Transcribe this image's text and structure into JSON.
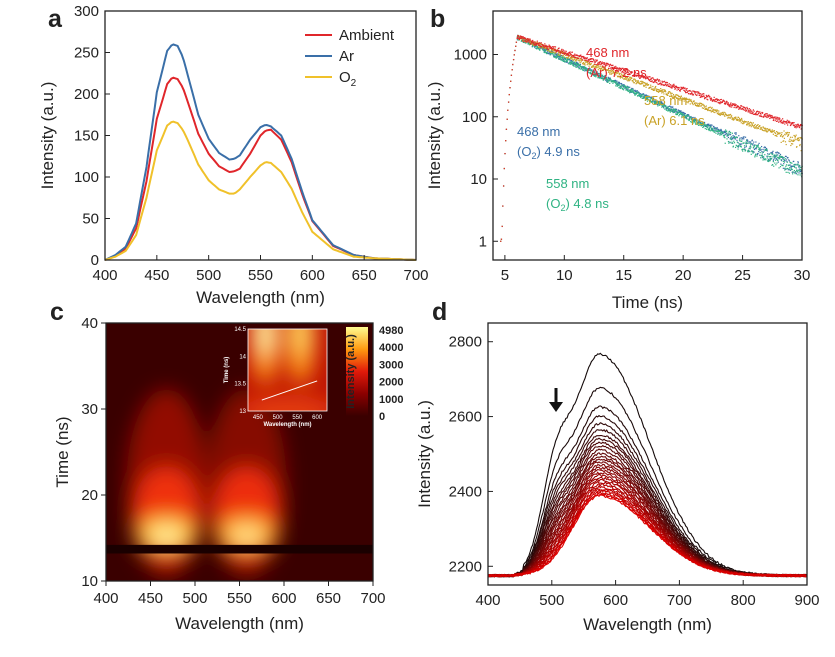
{
  "chart_data": [
    {
      "panel": "a",
      "type": "line",
      "xlabel": "Wavelength (nm)",
      "ylabel": "Intensity (a.u.)",
      "xlim": [
        400,
        700
      ],
      "ylim": [
        0,
        300
      ],
      "xticks": [
        400,
        450,
        500,
        550,
        600,
        650,
        700
      ],
      "yticks": [
        0,
        50,
        100,
        150,
        200,
        250,
        300
      ],
      "legend_position": "top-right",
      "series": [
        {
          "name": "Ambient",
          "color": "#e0262b",
          "x": [
            400,
            410,
            420,
            430,
            440,
            450,
            460,
            465,
            470,
            475,
            480,
            490,
            500,
            510,
            520,
            525,
            530,
            540,
            550,
            555,
            560,
            570,
            580,
            590,
            600,
            620,
            640,
            660,
            680,
            700
          ],
          "y": [
            0,
            5,
            14,
            38,
            95,
            170,
            212,
            220,
            218,
            208,
            190,
            152,
            128,
            113,
            106,
            107,
            110,
            128,
            150,
            156,
            157,
            145,
            118,
            80,
            47,
            17,
            6,
            2,
            1,
            0
          ]
        },
        {
          "name": "Ar",
          "color": "#3a6fa8",
          "x": [
            400,
            410,
            420,
            430,
            440,
            450,
            460,
            465,
            470,
            475,
            480,
            490,
            500,
            510,
            520,
            525,
            530,
            540,
            550,
            555,
            560,
            570,
            580,
            590,
            600,
            620,
            640,
            660,
            680,
            700
          ],
          "y": [
            0,
            6,
            16,
            44,
            112,
            202,
            252,
            260,
            258,
            245,
            222,
            175,
            146,
            129,
            121,
            122,
            126,
            145,
            160,
            163,
            161,
            150,
            122,
            83,
            48,
            18,
            6,
            2,
            1,
            0
          ]
        },
        {
          "name": "O2",
          "color": "#f0c12a",
          "x": [
            400,
            410,
            420,
            430,
            440,
            450,
            460,
            465,
            470,
            475,
            480,
            490,
            500,
            510,
            520,
            525,
            530,
            540,
            550,
            555,
            560,
            570,
            580,
            590,
            600,
            620,
            640,
            660,
            680,
            700
          ],
          "y": [
            0,
            4,
            11,
            30,
            75,
            132,
            162,
            167,
            165,
            157,
            144,
            115,
            96,
            85,
            80,
            80,
            85,
            100,
            114,
            118,
            117,
            106,
            86,
            58,
            34,
            13,
            4,
            2,
            1,
            0
          ]
        }
      ]
    },
    {
      "panel": "b",
      "type": "scatter",
      "xlabel": "Time (ns)",
      "ylabel": "Intensity (a.u.)",
      "xlim": [
        4,
        30
      ],
      "ylim": [
        0.5,
        5000
      ],
      "yscale": "log",
      "xticks": [
        5,
        10,
        15,
        20,
        25,
        30
      ],
      "yticks": [
        1,
        10,
        100,
        1000
      ],
      "peak_time": 6.0,
      "peak_counts": 1900,
      "annotations": [
        {
          "line1": "468 nm",
          "line2": "(Ar) 7.2 ns",
          "color": "#e0262b",
          "tau": 7.2
        },
        {
          "line1": "558 nm",
          "line2": "(Ar) 6.1 ns",
          "color": "#c9a227",
          "tau": 6.1
        },
        {
          "line1": "468 nm",
          "line2": "(O2) 4.9 ns",
          "color": "#3a6fa8",
          "tau": 4.9
        },
        {
          "line1": "558 nm",
          "line2": "(O2) 4.8 ns",
          "color": "#2fb383",
          "tau": 4.8
        }
      ]
    },
    {
      "panel": "c",
      "type": "heatmap",
      "xlabel": "Wavelength (nm)",
      "ylabel": "Time (ns)",
      "xlim": [
        400,
        700
      ],
      "ylim": [
        10,
        40
      ],
      "xticks": [
        400,
        450,
        500,
        550,
        600,
        650,
        700
      ],
      "yticks": [
        10,
        20,
        30,
        40
      ],
      "colorbar_label": "Intensity (a.u.)",
      "colorbar_ticks": [
        "4980",
        "4000",
        "3000",
        "2000",
        "1000",
        "0"
      ],
      "hotspots": [
        {
          "wavelength": 468,
          "time": 15.5,
          "intensity": 4980
        },
        {
          "wavelength": 558,
          "time": 15.5,
          "intensity": 3800
        }
      ],
      "inset": {
        "xlabel": "Wavelength (nm)",
        "ylabel": "Time (ns)",
        "xlim": [
          425,
          625
        ],
        "ylim": [
          13.0,
          14.5
        ],
        "xticks": [
          450,
          500,
          550,
          600
        ],
        "yticks": [
          13,
          13.5,
          14,
          14.5
        ],
        "ytick_labels": [
          "13",
          "13.5",
          "14",
          "14.5"
        ],
        "trend_line": {
          "x": [
            460,
            600
          ],
          "y": [
            13.2,
            13.55
          ]
        }
      }
    },
    {
      "panel": "d",
      "type": "line",
      "xlabel": "Wavelength (nm)",
      "ylabel": "Intensity (a.u.)",
      "xlim": [
        400,
        900
      ],
      "ylim": [
        2150,
        2850
      ],
      "xticks": [
        400,
        500,
        600,
        700,
        800,
        900
      ],
      "yticks": [
        2200,
        2400,
        2600,
        2800
      ],
      "baseline": 2175,
      "peak_wavelength": 575,
      "peak_heights": [
        2765,
        2675,
        2625,
        2600,
        2580,
        2565,
        2550,
        2540,
        2530,
        2520,
        2510,
        2500,
        2492,
        2485,
        2478,
        2470,
        2463,
        2456,
        2449,
        2442,
        2436,
        2430,
        2424,
        2418,
        2412,
        2406,
        2401,
        2396,
        2392,
        2388
      ],
      "arrow_direction": "down"
    }
  ],
  "panels": {
    "a": {
      "label": "a"
    },
    "b": {
      "label": "b"
    },
    "c": {
      "label": "c"
    },
    "d": {
      "label": "d"
    }
  }
}
